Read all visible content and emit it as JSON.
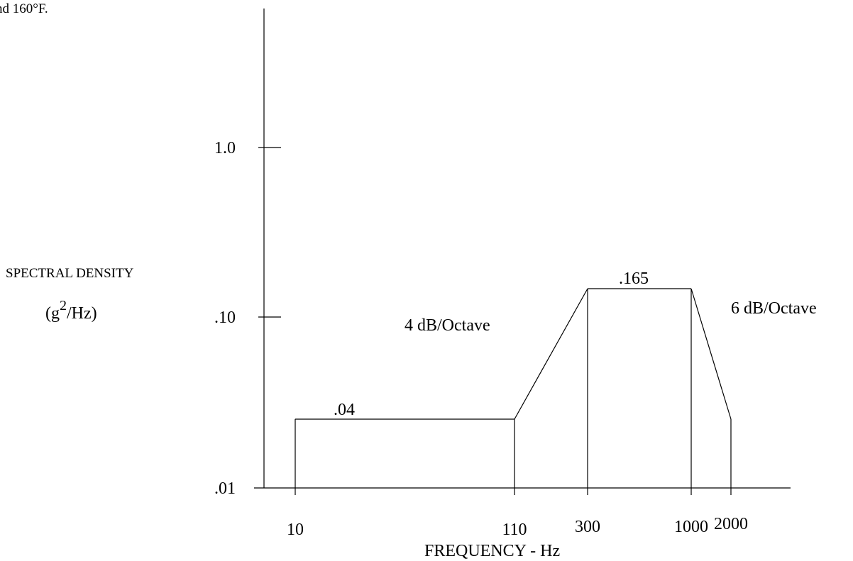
{
  "caption_fragment": "nd 160°F.",
  "chart_data": {
    "type": "line",
    "title": "",
    "xlabel": "FREQUENCY - Hz",
    "ylabel": "SPECTRAL DENSITY",
    "ylabel_unit": {
      "base": "(g",
      "sup": "2",
      "rest": "/Hz)"
    },
    "y_scale": "log",
    "ylim": [
      0.01,
      1.0
    ],
    "y_ticks": [
      {
        "value": 0.01,
        "label": ".01"
      },
      {
        "value": 0.1,
        "label": ".10"
      },
      {
        "value": 1.0,
        "label": "1.0"
      }
    ],
    "x_ticks": [
      {
        "value": 10,
        "label": "10"
      },
      {
        "value": 110,
        "label": "110"
      },
      {
        "value": 300,
        "label": "300"
      },
      {
        "value": 1000,
        "label": "1000"
      },
      {
        "value": 2000,
        "label": "2000"
      }
    ],
    "grid": false,
    "series": [
      {
        "points": [
          {
            "x": 10,
            "y": 0.04
          },
          {
            "x": 110,
            "y": 0.04
          },
          {
            "x": 300,
            "y": 0.165
          },
          {
            "x": 1000,
            "y": 0.165
          },
          {
            "x": 2000,
            "y": 0.04
          }
        ]
      }
    ],
    "annotations": {
      "level_low": ".04",
      "level_high": ".165",
      "slope_up": "4 dB/Octave",
      "slope_down": "6 dB/Octave"
    }
  }
}
